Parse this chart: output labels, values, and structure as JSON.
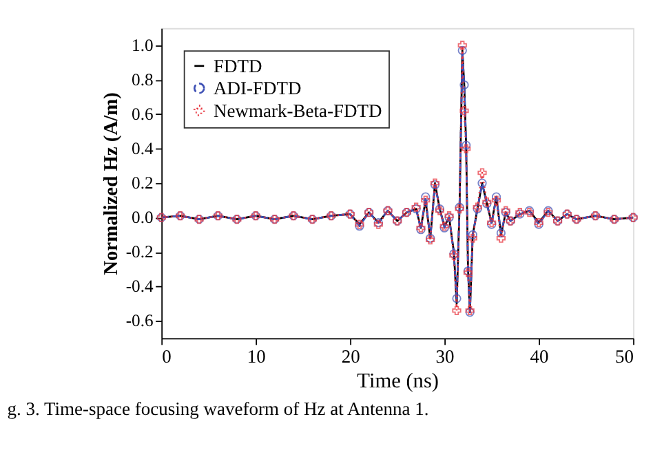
{
  "chart_data": {
    "type": "line",
    "xlabel": "Time (ns)",
    "ylabel": "Normalized Hz (A/m)",
    "x": [
      0,
      2,
      4,
      6,
      8,
      10,
      12,
      14,
      16,
      18,
      20,
      21,
      22,
      23,
      24,
      25,
      26,
      27,
      27.5,
      28,
      28.5,
      29,
      29.5,
      30,
      30.5,
      31,
      31.3,
      31.6,
      31.9,
      32.1,
      32.3,
      32.5,
      32.7,
      33,
      33.5,
      34,
      34.5,
      35,
      35.5,
      36,
      36.5,
      37,
      38,
      39,
      40,
      41,
      42,
      43,
      44,
      46,
      48,
      50
    ],
    "series": [
      {
        "name": "FDTD",
        "color": "#000000",
        "marker": "none",
        "line_style": "solid",
        "values": [
          0.0,
          0.01,
          -0.01,
          0.01,
          -0.01,
          0.01,
          -0.01,
          0.01,
          -0.01,
          0.01,
          0.02,
          -0.04,
          0.03,
          -0.03,
          0.04,
          -0.02,
          0.03,
          0.05,
          -0.06,
          0.1,
          -0.12,
          0.2,
          0.05,
          -0.05,
          0.0,
          -0.2,
          -0.5,
          0.06,
          0.97,
          0.77,
          0.42,
          -0.3,
          -0.55,
          -0.1,
          0.05,
          0.2,
          0.08,
          -0.03,
          0.12,
          -0.1,
          0.03,
          -0.02,
          0.02,
          0.04,
          -0.03,
          0.04,
          -0.02,
          0.02,
          -0.01,
          0.01,
          -0.01,
          0.0
        ]
      },
      {
        "name": "ADI-FDTD",
        "color": "#3f51b5",
        "marker": "circle",
        "line_style": "dashed",
        "values": [
          0.0,
          0.01,
          -0.01,
          0.01,
          -0.01,
          0.01,
          -0.01,
          0.01,
          -0.01,
          0.01,
          0.02,
          -0.05,
          0.03,
          -0.03,
          0.04,
          -0.02,
          0.03,
          0.05,
          -0.07,
          0.12,
          -0.12,
          0.19,
          0.05,
          -0.06,
          0.0,
          -0.21,
          -0.47,
          0.06,
          0.97,
          0.77,
          0.42,
          -0.31,
          -0.55,
          -0.1,
          0.05,
          0.2,
          0.08,
          -0.04,
          0.12,
          -0.09,
          0.03,
          -0.02,
          0.02,
          0.04,
          -0.04,
          0.04,
          -0.02,
          0.02,
          -0.01,
          0.01,
          -0.01,
          0.0
        ]
      },
      {
        "name": "Newmark-Beta-FDTD",
        "color": "#e8303a",
        "marker": "cross",
        "line_style": "dotted",
        "values": [
          0.0,
          0.01,
          -0.01,
          0.01,
          -0.01,
          0.01,
          -0.01,
          0.01,
          -0.01,
          0.01,
          0.02,
          -0.04,
          0.03,
          -0.04,
          0.04,
          -0.02,
          0.03,
          0.06,
          -0.06,
          0.1,
          -0.13,
          0.2,
          0.04,
          -0.05,
          0.01,
          -0.22,
          -0.54,
          0.05,
          1.0,
          0.62,
          0.4,
          -0.32,
          -0.54,
          -0.12,
          0.06,
          0.26,
          0.09,
          -0.03,
          0.1,
          -0.12,
          0.04,
          -0.02,
          0.03,
          0.03,
          -0.03,
          0.03,
          -0.02,
          0.02,
          -0.01,
          0.01,
          -0.01,
          0.0
        ]
      }
    ],
    "xlim": [
      0,
      50
    ],
    "xticks": [
      0,
      10,
      20,
      30,
      40,
      50
    ],
    "ylim": [
      -0.7,
      1.1
    ],
    "yticks": [
      {
        "value": -0.6,
        "label": "-0.6"
      },
      {
        "value": -0.4,
        "label": "-0.4"
      },
      {
        "value": -0.2,
        "label": "-0.2"
      },
      {
        "value": 0,
        "label": "0.0"
      },
      {
        "value": 0.2,
        "label": "0.2"
      },
      {
        "value": 0.4,
        "label": "0.4"
      },
      {
        "value": 0.6,
        "label": "0.6"
      },
      {
        "value": 0.8,
        "label": "0.8"
      },
      {
        "value": 1.0,
        "label": "1.0"
      }
    ],
    "grid": false,
    "legend": "top left",
    "annotations": [
      "g. 3. Time-space focusing waveform of Hz at Antenna 1."
    ]
  }
}
